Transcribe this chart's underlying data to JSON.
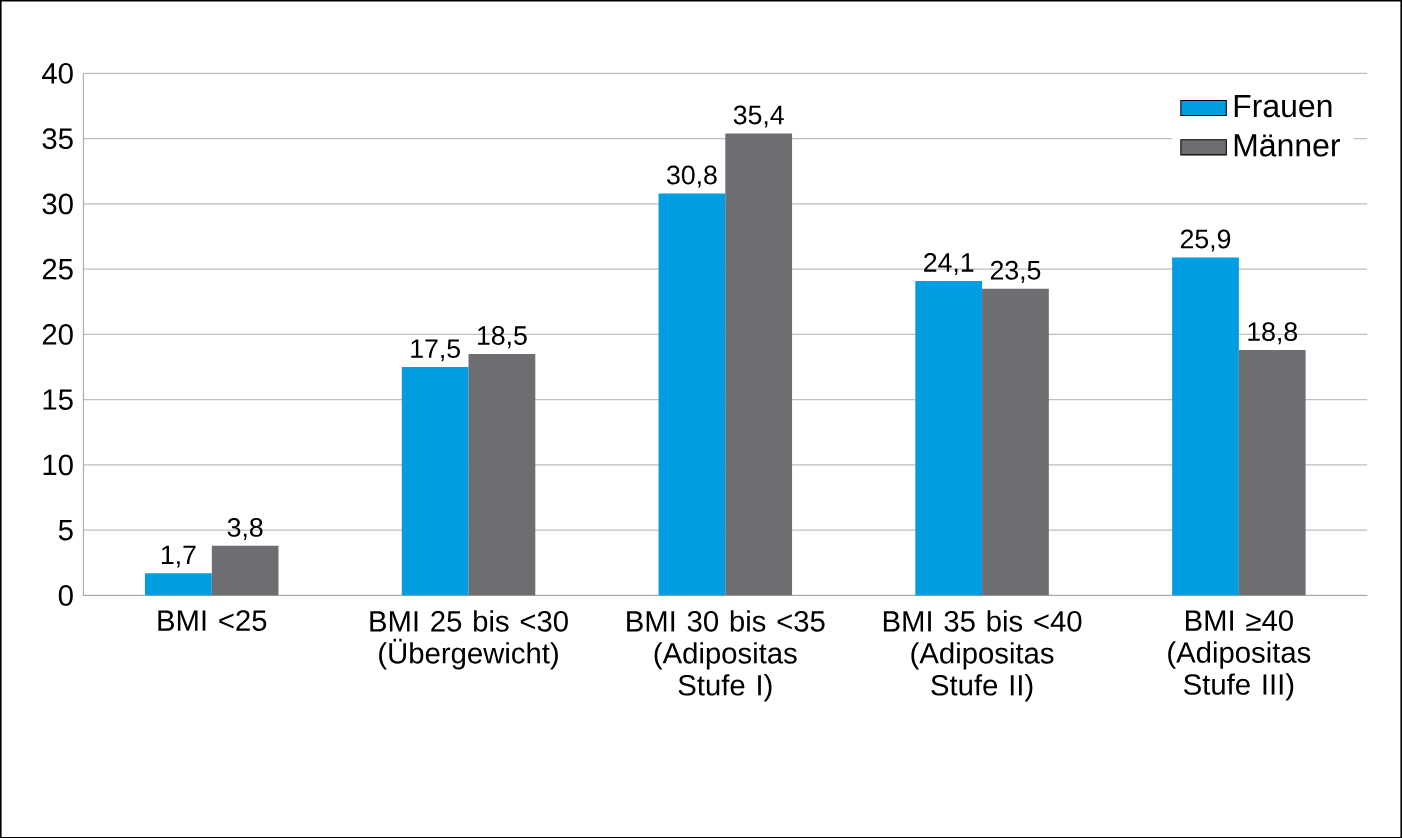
{
  "chart_data": {
    "type": "bar",
    "categories": [
      "BMI <25",
      "BMI 25 bis <30 (Übergewicht)",
      "BMI 30 bis <35 (Adipositas Stufe I)",
      "BMI 35 bis <40 (Adipositas Stufe II)",
      "BMI ≥40 (Adipositas Stufe III)"
    ],
    "series": [
      {
        "name": "Frauen",
        "color": "#009ee0",
        "values": [
          1.7,
          17.5,
          30.8,
          24.1,
          25.9
        ],
        "value_labels": [
          "1,7",
          "17,5",
          "30,8",
          "24,1",
          "25,9"
        ]
      },
      {
        "name": "Männer",
        "color": "#6d6e71",
        "values": [
          3.8,
          18.5,
          35.4,
          23.5,
          18.8
        ],
        "value_labels": [
          "3,8",
          "18,5",
          "35,4",
          "23,5",
          "18,8"
        ]
      }
    ],
    "ylim": [
      0,
      40
    ],
    "yticks": [
      0,
      5,
      10,
      15,
      20,
      25,
      30,
      35,
      40
    ],
    "grid": "y",
    "legend": "top right"
  }
}
